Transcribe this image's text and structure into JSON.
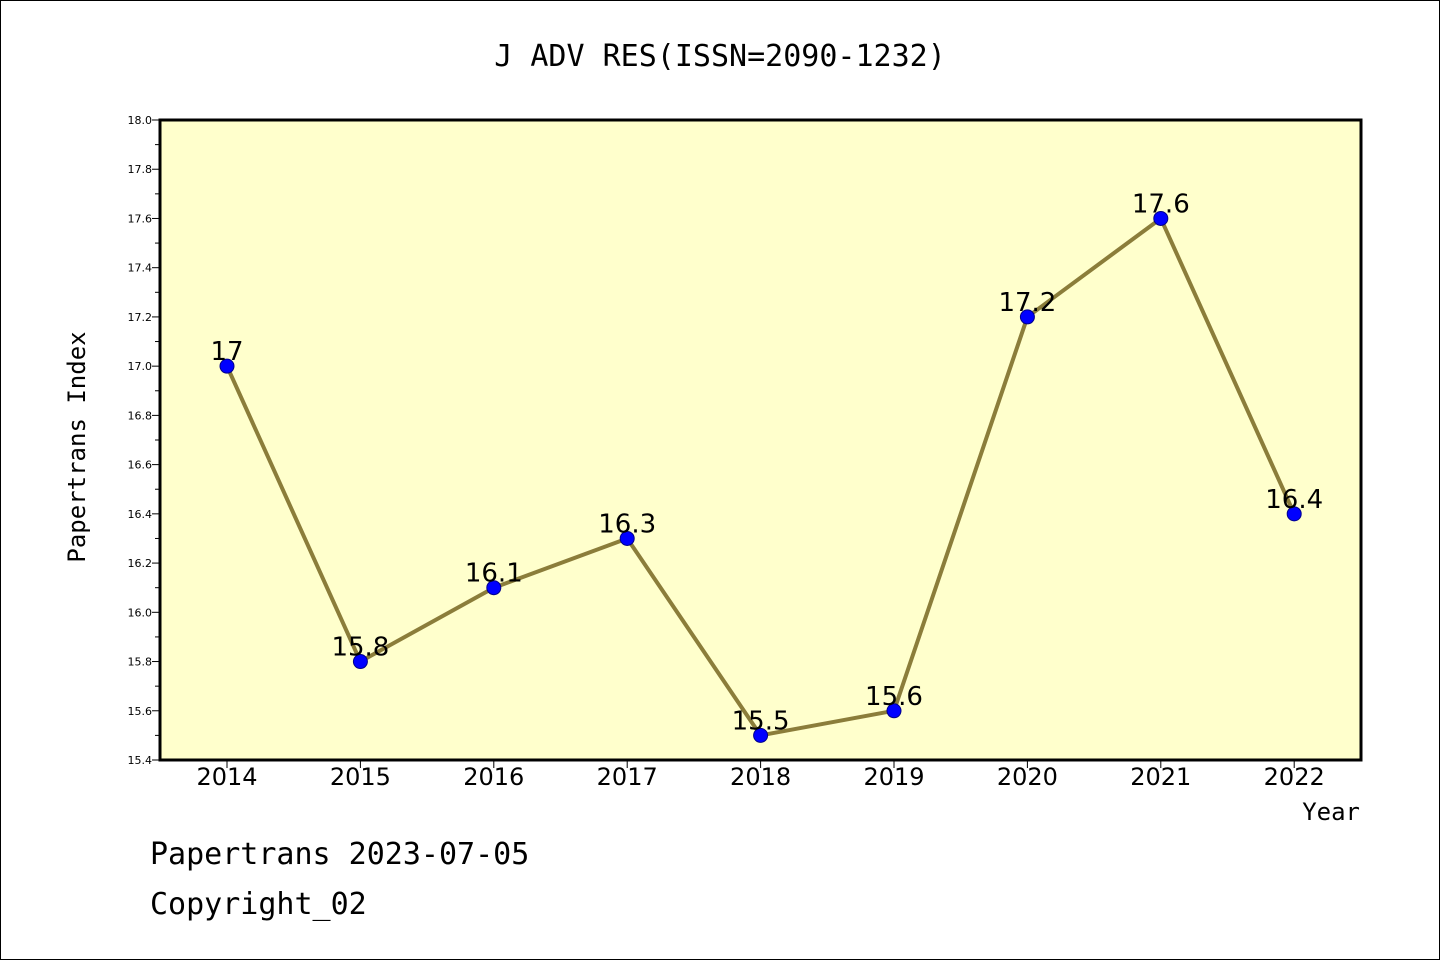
{
  "chart_data": {
    "type": "line",
    "title": "J ADV RES(ISSN=2090-1232)",
    "xlabel": "Year",
    "ylabel": "Papertrans Index",
    "categories": [
      "2014",
      "2015",
      "2016",
      "2017",
      "2018",
      "2019",
      "2020",
      "2021",
      "2022"
    ],
    "values": [
      17.0,
      15.8,
      16.1,
      16.3,
      15.5,
      15.6,
      17.2,
      17.6,
      16.4
    ],
    "data_labels": [
      "17",
      "15.8",
      "16.1",
      "16.3",
      "15.5",
      "15.6",
      "17.2",
      "17.6",
      "16.4"
    ],
    "ylim": [
      15.4,
      18.0
    ],
    "yticks": [
      "15.4",
      "15.6",
      "15.8",
      "16.0",
      "16.2",
      "16.4",
      "16.6",
      "16.8",
      "17.0",
      "17.2",
      "17.4",
      "17.6",
      "17.8",
      "18.0"
    ],
    "grid": false,
    "legend": "none",
    "colors": {
      "plot_background": "#ffffcc",
      "line": "#8b7d3a",
      "marker_fill": "#0000ff",
      "marker_edge": "#00008b"
    }
  },
  "footer": {
    "line1": "Papertrans 2023-07-05",
    "line2": "Copyright_02"
  }
}
